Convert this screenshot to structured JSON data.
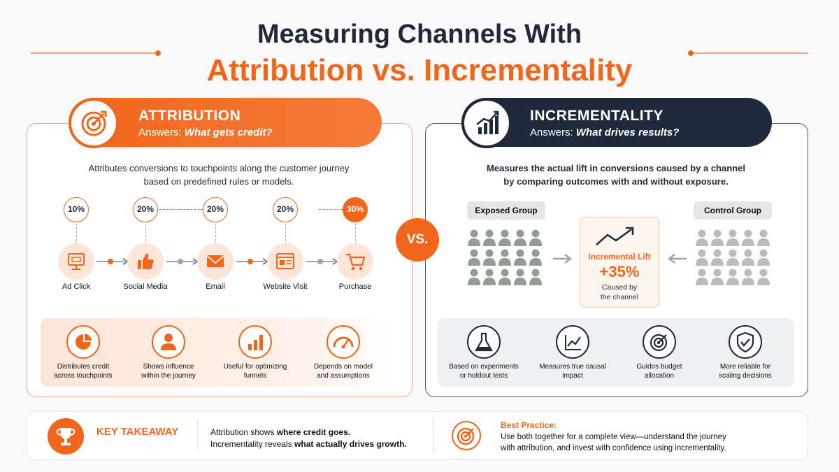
{
  "title": {
    "line1": "Measuring Channels With",
    "line2": "Attribution vs. Incrementality"
  },
  "colors": {
    "accent": "#f2661c",
    "dark": "#1e2a3a",
    "exposed": "#8f9f92",
    "control": "#b9bcc0"
  },
  "attribution": {
    "heading": "ATTRIBUTION",
    "answers_label": "Answers:",
    "answers_q": "What gets credit?",
    "icon": "target-icon",
    "description_l1": "Attributes conversions to touchpoints along the customer journey",
    "description_l2": "based on predefined rules or models.",
    "journey": [
      {
        "label": "Ad Click",
        "percent": "10%",
        "icon": "monitor-icon"
      },
      {
        "label": "Social Media",
        "percent": "20%",
        "icon": "thumbs-up-icon"
      },
      {
        "label": "Email",
        "percent": "20%",
        "icon": "envelope-icon"
      },
      {
        "label": "Website Visit",
        "percent": "20%",
        "icon": "browser-icon"
      },
      {
        "label": "Purchase",
        "percent": "30%",
        "icon": "cart-icon"
      }
    ],
    "features": [
      {
        "l1": "Distributes credit",
        "l2": "across touchpoints",
        "icon": "pie-chart-icon"
      },
      {
        "l1": "Shows influence",
        "l2": "within the journey",
        "icon": "person-icon"
      },
      {
        "l1": "Useful for optimizing",
        "l2": "funnels",
        "icon": "bar-chart-icon"
      },
      {
        "l1": "Depends on model",
        "l2": "and assumptions",
        "icon": "gauge-icon"
      }
    ]
  },
  "vs_label": "VS.",
  "incrementality": {
    "heading": "INCREMENTALITY",
    "answers_label": "Answers:",
    "answers_q": "What drives results?",
    "icon": "growth-chart-icon",
    "description_l1": "Measures the actual lift in conversions caused by a channel",
    "description_l2": "by comparing outcomes with and without exposure.",
    "exposed_label": "Exposed Group",
    "control_label": "Control Group",
    "lift_title": "Incremental Lift",
    "lift_value": "+35%",
    "lift_caption_l1": "Caused by",
    "lift_caption_l2": "the channel",
    "features": [
      {
        "l1": "Based on experiments",
        "l2": "or holdout tests",
        "icon": "flask-icon"
      },
      {
        "l1": "Measures true causal",
        "l2": "impact",
        "icon": "line-chart-icon"
      },
      {
        "l1": "Guides budget",
        "l2": "allocation",
        "icon": "target-icon"
      },
      {
        "l1": "More reliable for",
        "l2": "scaling decisions",
        "icon": "shield-check-icon"
      }
    ]
  },
  "footer": {
    "key_takeaway": "KEY TAKEAWAY",
    "takeaway_l1_a": "Attribution shows ",
    "takeaway_l1_b": "where credit goes.",
    "takeaway_l2_a": "Incrementality reveals ",
    "takeaway_l2_b": "what actually drives growth.",
    "best_practice_title": "Best Practice:",
    "best_practice_l1": "Use both together for a complete view—understand the journey",
    "best_practice_l2": "with attribution, and invest with confidence using incrementality.",
    "trophy_icon": "trophy-icon",
    "bp_icon": "target-icon"
  }
}
